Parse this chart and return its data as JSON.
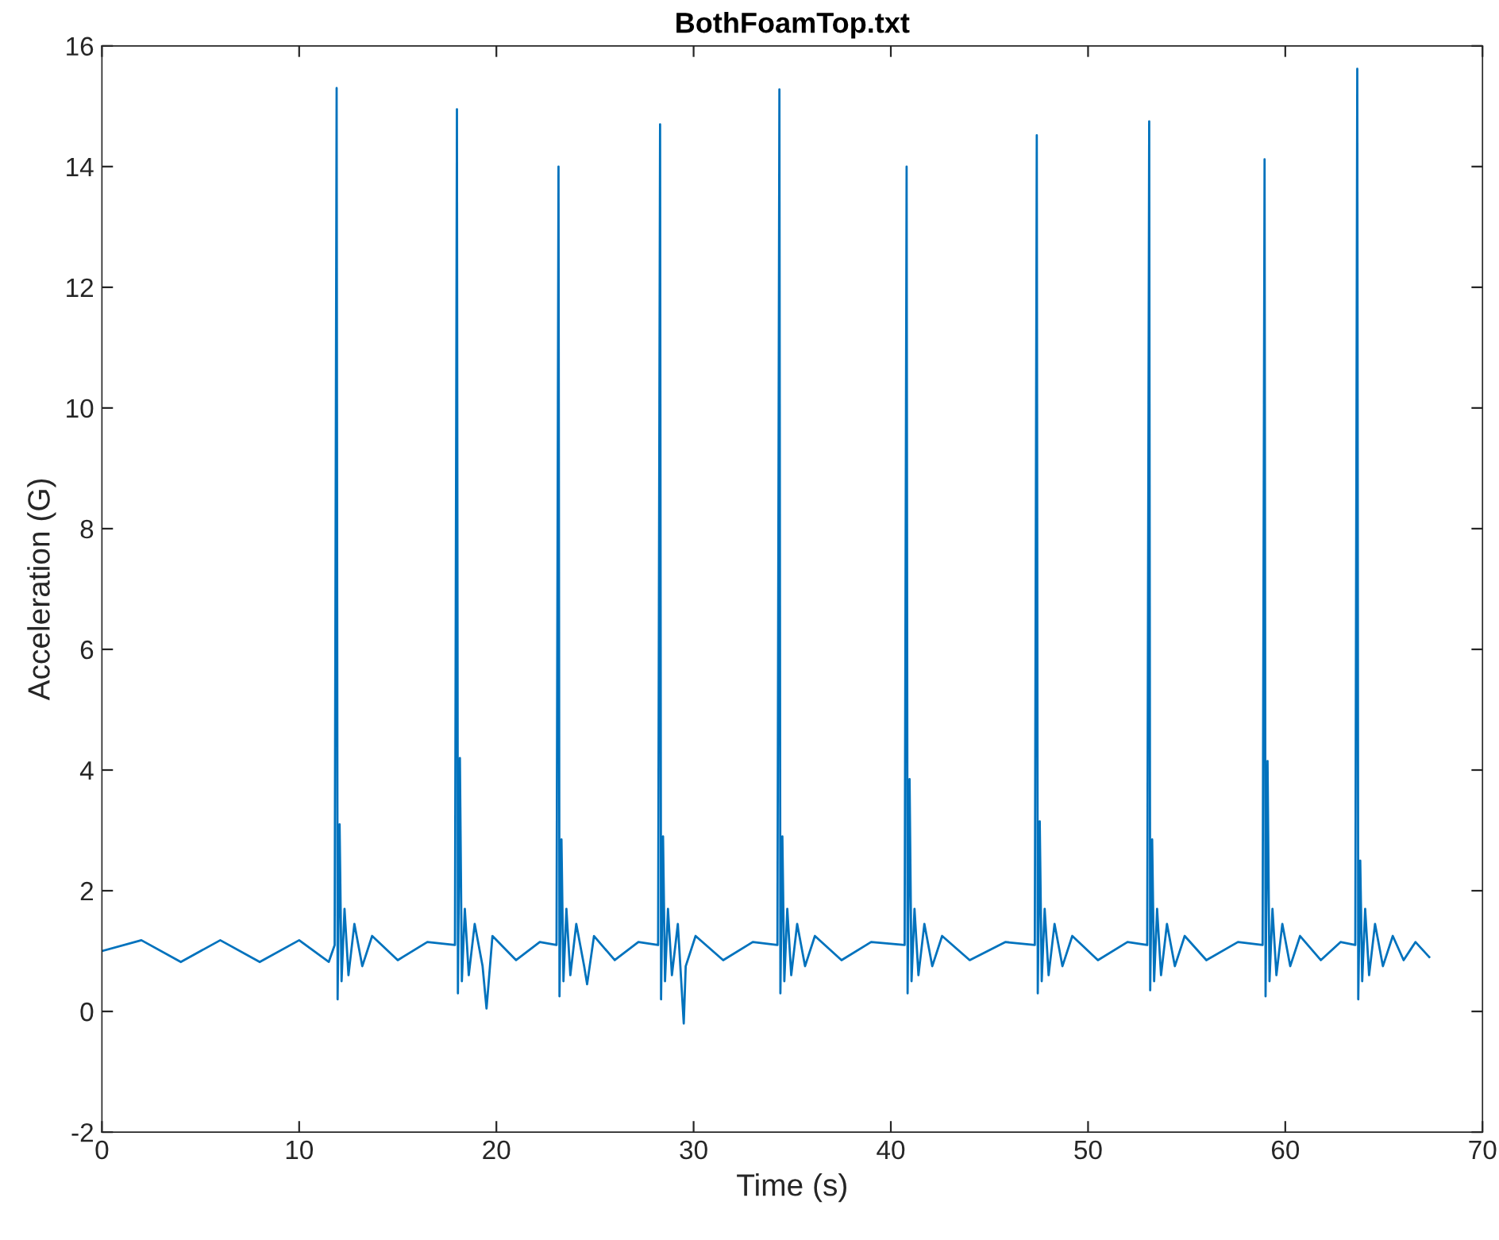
{
  "chart_data": {
    "type": "line",
    "title": "BothFoamTop.txt",
    "xlabel": "Time (s)",
    "ylabel": "Acceleration (G)",
    "x": [
      0,
      2,
      4,
      6,
      8,
      10,
      11.5,
      11.8,
      11.9,
      11.95,
      12.05,
      12.15,
      12.3,
      12.5,
      12.8,
      13.2,
      13.7,
      15.0,
      16.5,
      17.9,
      18.0,
      18.05,
      18.15,
      18.25,
      18.4,
      18.6,
      18.9,
      19.3,
      19.5,
      19.8,
      21.0,
      22.2,
      23.05,
      23.15,
      23.2,
      23.3,
      23.4,
      23.55,
      23.75,
      24.05,
      24.45,
      24.6,
      24.95,
      26.0,
      27.2,
      28.2,
      28.3,
      28.35,
      28.45,
      28.55,
      28.7,
      28.9,
      29.2,
      29.5,
      29.6,
      30.1,
      31.5,
      33.0,
      34.25,
      34.35,
      34.4,
      34.5,
      34.6,
      34.75,
      34.95,
      35.25,
      35.65,
      36.15,
      37.5,
      39.0,
      40.7,
      40.8,
      40.85,
      40.95,
      41.05,
      41.2,
      41.4,
      41.7,
      42.1,
      42.6,
      44.0,
      45.8,
      47.3,
      47.4,
      47.45,
      47.55,
      47.65,
      47.8,
      48.0,
      48.3,
      48.7,
      49.2,
      50.5,
      52.0,
      53.0,
      53.1,
      53.15,
      53.25,
      53.35,
      53.5,
      53.7,
      54.0,
      54.4,
      54.9,
      56.0,
      57.6,
      58.85,
      58.95,
      59.0,
      59.1,
      59.2,
      59.35,
      59.55,
      59.85,
      60.25,
      60.75,
      61.8,
      62.8,
      63.55,
      63.65,
      63.7,
      63.8,
      63.9,
      64.05,
      64.25,
      64.55,
      64.95,
      65.45,
      66.0,
      66.6,
      67.3
    ],
    "series": [
      {
        "color": "#0072bd",
        "values": [
          1.0,
          1.18,
          0.82,
          1.18,
          0.82,
          1.18,
          0.82,
          1.1,
          15.3,
          0.2,
          3.1,
          0.5,
          1.7,
          0.6,
          1.45,
          0.75,
          1.25,
          0.85,
          1.15,
          1.1,
          14.95,
          0.3,
          4.2,
          0.5,
          1.7,
          0.6,
          1.45,
          0.75,
          0.05,
          1.25,
          0.85,
          1.15,
          1.1,
          14.0,
          0.25,
          2.85,
          0.5,
          1.7,
          0.6,
          1.45,
          0.75,
          0.45,
          1.25,
          0.85,
          1.15,
          1.1,
          14.7,
          0.2,
          2.9,
          0.5,
          1.7,
          0.6,
          1.45,
          -0.2,
          0.75,
          1.25,
          0.85,
          1.15,
          1.1,
          15.28,
          0.3,
          2.9,
          0.5,
          1.7,
          0.6,
          1.45,
          0.75,
          1.25,
          0.85,
          1.15,
          1.1,
          14.0,
          0.3,
          3.85,
          0.5,
          1.7,
          0.6,
          1.45,
          0.75,
          1.25,
          0.85,
          1.15,
          1.1,
          14.52,
          0.3,
          3.15,
          0.5,
          1.7,
          0.6,
          1.45,
          0.75,
          1.25,
          0.85,
          1.15,
          1.1,
          14.75,
          0.35,
          2.85,
          0.5,
          1.7,
          0.6,
          1.45,
          0.75,
          1.25,
          0.85,
          1.15,
          1.1,
          14.12,
          0.25,
          4.15,
          0.5,
          1.7,
          0.6,
          1.45,
          0.75,
          1.25,
          0.85,
          1.15,
          1.1,
          15.62,
          0.2,
          2.5,
          0.5,
          1.7,
          0.6,
          1.45,
          0.75,
          1.25,
          0.85,
          1.15,
          0.9
        ]
      }
    ],
    "xlim": [
      0,
      70
    ],
    "ylim": [
      -2,
      16
    ],
    "xticks": [
      0,
      10,
      20,
      30,
      40,
      50,
      60,
      70
    ],
    "yticks": [
      -2,
      0,
      2,
      4,
      6,
      8,
      10,
      12,
      14,
      16
    ]
  }
}
